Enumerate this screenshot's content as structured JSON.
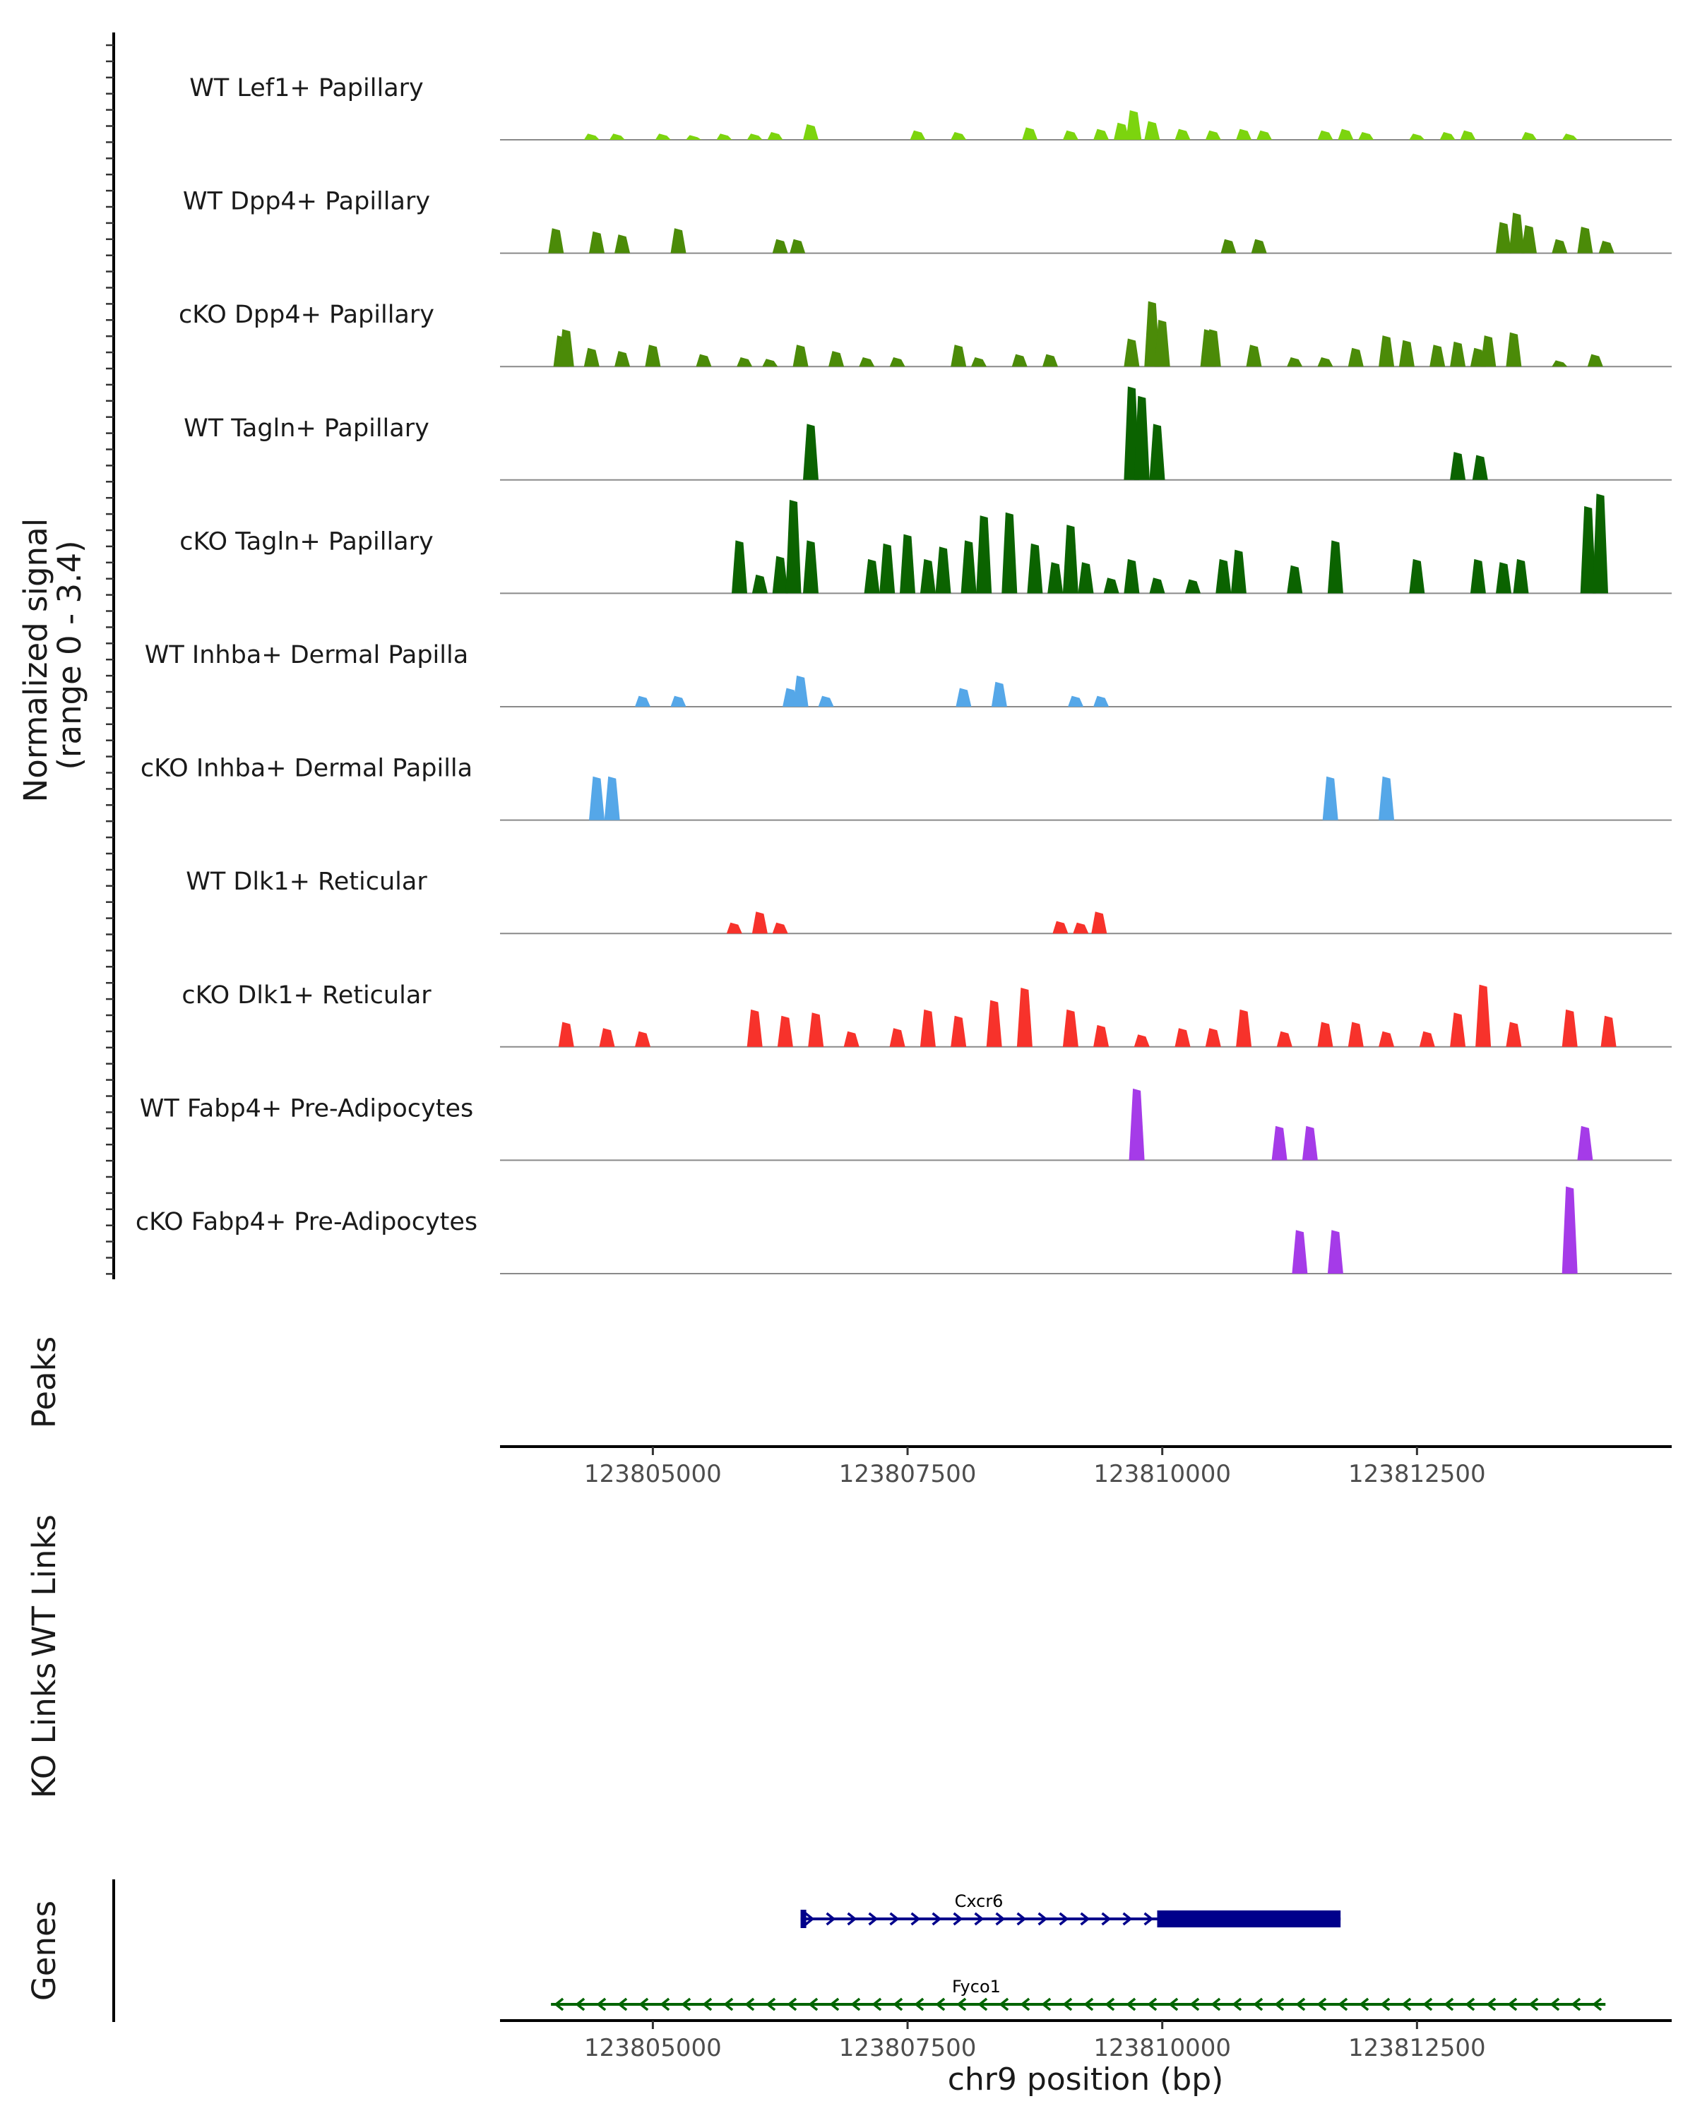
{
  "chart_data": {
    "type": "area",
    "region": "chr9",
    "xlim": [
      123803500,
      123815000
    ],
    "ylim": [
      0,
      3.4
    ],
    "ylabel": "Normalized signal\n(range 0 - 3.4)",
    "xlabel": "chr9 position (bp)",
    "x_ticks": [
      "123805000",
      "123807500",
      "123810000",
      "123812500"
    ],
    "x_tick_values": [
      123805000,
      123807500,
      123810000,
      123812500
    ],
    "tracks": [
      {
        "name": "WT Lef1+ Papillary",
        "color": "#7CD40E",
        "points": [
          [
            123804400,
            0.2
          ],
          [
            123804650,
            0.2
          ],
          [
            123805100,
            0.2
          ],
          [
            123805400,
            0.15
          ],
          [
            123805700,
            0.2
          ],
          [
            123806000,
            0.2
          ],
          [
            123806200,
            0.25
          ],
          [
            123806550,
            0.5
          ],
          [
            123807600,
            0.3
          ],
          [
            123808000,
            0.25
          ],
          [
            123808700,
            0.4
          ],
          [
            123809100,
            0.3
          ],
          [
            123809400,
            0.35
          ],
          [
            123809600,
            0.55
          ],
          [
            123809720,
            0.95
          ],
          [
            123809900,
            0.6
          ],
          [
            123810200,
            0.35
          ],
          [
            123810500,
            0.3
          ],
          [
            123810800,
            0.35
          ],
          [
            123811000,
            0.3
          ],
          [
            123811600,
            0.3
          ],
          [
            123811800,
            0.35
          ],
          [
            123812000,
            0.25
          ],
          [
            123812500,
            0.2
          ],
          [
            123812800,
            0.25
          ],
          [
            123813000,
            0.3
          ],
          [
            123813600,
            0.25
          ],
          [
            123814000,
            0.2
          ]
        ]
      },
      {
        "name": "WT Dpp4+ Papillary",
        "color": "#4B8B08",
        "points": [
          [
            123804050,
            0.8
          ],
          [
            123804450,
            0.7
          ],
          [
            123804700,
            0.6
          ],
          [
            123805250,
            0.8
          ],
          [
            123806250,
            0.45
          ],
          [
            123806420,
            0.45
          ],
          [
            123810650,
            0.45
          ],
          [
            123810950,
            0.45
          ],
          [
            123813350,
            1.0
          ],
          [
            123813480,
            1.3
          ],
          [
            123813600,
            0.9
          ],
          [
            123813900,
            0.45
          ],
          [
            123814150,
            0.85
          ],
          [
            123814360,
            0.4
          ]
        ]
      },
      {
        "name": "cKO Dpp4+ Papillary",
        "color": "#4B8B08",
        "points": [
          [
            123804100,
            1.0
          ],
          [
            123804150,
            1.2
          ],
          [
            123804400,
            0.6
          ],
          [
            123804700,
            0.5
          ],
          [
            123805000,
            0.7
          ],
          [
            123805500,
            0.4
          ],
          [
            123805900,
            0.3
          ],
          [
            123806150,
            0.25
          ],
          [
            123806450,
            0.7
          ],
          [
            123806800,
            0.5
          ],
          [
            123807100,
            0.3
          ],
          [
            123807400,
            0.3
          ],
          [
            123808000,
            0.7
          ],
          [
            123808200,
            0.3
          ],
          [
            123808600,
            0.4
          ],
          [
            123808900,
            0.4
          ],
          [
            123809700,
            0.9
          ],
          [
            123809900,
            2.1
          ],
          [
            123810000,
            1.5
          ],
          [
            123810450,
            1.2
          ],
          [
            123810500,
            1.2
          ],
          [
            123810900,
            0.7
          ],
          [
            123811300,
            0.3
          ],
          [
            123811600,
            0.3
          ],
          [
            123811900,
            0.6
          ],
          [
            123812200,
            1.0
          ],
          [
            123812400,
            0.85
          ],
          [
            123812700,
            0.7
          ],
          [
            123812900,
            0.8
          ],
          [
            123813100,
            0.6
          ],
          [
            123813200,
            1.0
          ],
          [
            123813450,
            1.1
          ],
          [
            123813900,
            0.2
          ],
          [
            123814250,
            0.4
          ]
        ]
      },
      {
        "name": "WT Tagln+ Papillary",
        "color": "#0B6300",
        "points": [
          [
            123806550,
            1.8
          ],
          [
            123809700,
            3.0
          ],
          [
            123809800,
            2.7
          ],
          [
            123809950,
            1.8
          ],
          [
            123812900,
            0.9
          ],
          [
            123813120,
            0.8
          ]
        ]
      },
      {
        "name": "cKO Tagln+ Papillary",
        "color": "#0B6300",
        "points": [
          [
            123805850,
            1.7
          ],
          [
            123806050,
            0.6
          ],
          [
            123806250,
            1.2
          ],
          [
            123806380,
            3.0
          ],
          [
            123806550,
            1.7
          ],
          [
            123807150,
            1.1
          ],
          [
            123807300,
            1.6
          ],
          [
            123807500,
            1.9
          ],
          [
            123807700,
            1.1
          ],
          [
            123807850,
            1.5
          ],
          [
            123808100,
            1.7
          ],
          [
            123808250,
            2.5
          ],
          [
            123808500,
            2.6
          ],
          [
            123808750,
            1.6
          ],
          [
            123808950,
            1.0
          ],
          [
            123809100,
            2.2
          ],
          [
            123809250,
            1.0
          ],
          [
            123809500,
            0.5
          ],
          [
            123809700,
            1.1
          ],
          [
            123809950,
            0.5
          ],
          [
            123810300,
            0.45
          ],
          [
            123810600,
            1.1
          ],
          [
            123810750,
            1.4
          ],
          [
            123811300,
            0.9
          ],
          [
            123811700,
            1.7
          ],
          [
            123812500,
            1.1
          ],
          [
            123813100,
            1.1
          ],
          [
            123813350,
            1.0
          ],
          [
            123813520,
            1.1
          ],
          [
            123814180,
            2.8
          ],
          [
            123814300,
            3.2
          ]
        ]
      },
      {
        "name": "WT Inhba+ Dermal Papilla",
        "color": "#55A7E8",
        "points": [
          [
            123804900,
            0.35
          ],
          [
            123805250,
            0.35
          ],
          [
            123806350,
            0.6
          ],
          [
            123806450,
            1.0
          ],
          [
            123806700,
            0.35
          ],
          [
            123808050,
            0.6
          ],
          [
            123808400,
            0.8
          ],
          [
            123809150,
            0.35
          ],
          [
            123809400,
            0.35
          ]
        ]
      },
      {
        "name": "cKO Inhba+ Dermal Papilla",
        "color": "#55A7E8",
        "points": [
          [
            123804450,
            1.4
          ],
          [
            123804600,
            1.4
          ],
          [
            123811650,
            1.4
          ],
          [
            123812200,
            1.4
          ]
        ]
      },
      {
        "name": "WT Dlk1+ Reticular",
        "color": "#F7322B",
        "points": [
          [
            123805800,
            0.35
          ],
          [
            123806050,
            0.7
          ],
          [
            123806250,
            0.35
          ],
          [
            123809000,
            0.4
          ],
          [
            123809200,
            0.35
          ],
          [
            123809380,
            0.7
          ]
        ]
      },
      {
        "name": "cKO Dlk1+ Reticular",
        "color": "#F7322B",
        "points": [
          [
            123804150,
            0.8
          ],
          [
            123804550,
            0.6
          ],
          [
            123804900,
            0.5
          ],
          [
            123806000,
            1.2
          ],
          [
            123806300,
            1.0
          ],
          [
            123806600,
            1.1
          ],
          [
            123806950,
            0.5
          ],
          [
            123807400,
            0.6
          ],
          [
            123807700,
            1.2
          ],
          [
            123808000,
            1.0
          ],
          [
            123808350,
            1.5
          ],
          [
            123808650,
            1.9
          ],
          [
            123809100,
            1.2
          ],
          [
            123809400,
            0.7
          ],
          [
            123809800,
            0.4
          ],
          [
            123810200,
            0.6
          ],
          [
            123810500,
            0.6
          ],
          [
            123810800,
            1.2
          ],
          [
            123811200,
            0.5
          ],
          [
            123811600,
            0.8
          ],
          [
            123811900,
            0.8
          ],
          [
            123812200,
            0.5
          ],
          [
            123812600,
            0.5
          ],
          [
            123812900,
            1.1
          ],
          [
            123813150,
            2.0
          ],
          [
            123813450,
            0.8
          ],
          [
            123814000,
            1.2
          ],
          [
            123814380,
            1.0
          ]
        ]
      },
      {
        "name": "WT Fabp4+ Pre-Adipocytes",
        "color": "#A53BE8",
        "points": [
          [
            123809750,
            2.3
          ],
          [
            123811150,
            1.1
          ],
          [
            123811450,
            1.1
          ],
          [
            123814150,
            1.1
          ]
        ]
      },
      {
        "name": "cKO Fabp4+ Pre-Adipocytes",
        "color": "#A53BE8",
        "points": [
          [
            123811350,
            1.4
          ],
          [
            123811700,
            1.4
          ],
          [
            123814000,
            2.8
          ]
        ]
      }
    ],
    "peaks_label": "Peaks",
    "links": [
      {
        "label": "WT Links"
      },
      {
        "label": "KO Links"
      }
    ],
    "genes_label": "Genes",
    "genes": [
      {
        "name": "Cxcr6",
        "start": 123806450,
        "end": 123811750,
        "strand": "+",
        "color": "#00008B",
        "thin_end": 123809950,
        "thick_start": 123809950
      },
      {
        "name": "Fyco1",
        "start": 123804000,
        "end": 123814350,
        "strand": "-",
        "color": "#006400"
      }
    ]
  }
}
